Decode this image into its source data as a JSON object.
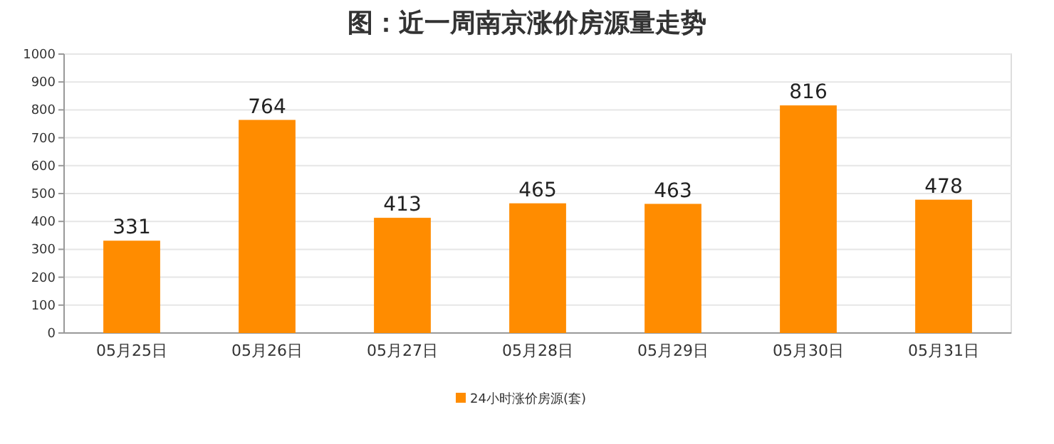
{
  "chart_data": {
    "type": "bar",
    "title": "图：近一周南京涨价房源量走势",
    "categories": [
      "05月25日",
      "05月26日",
      "05月27日",
      "05月28日",
      "05月29日",
      "05月30日",
      "05月31日"
    ],
    "series": [
      {
        "name": "24小时涨价房源(套)",
        "color": "#ff8c00",
        "values": [
          331,
          764,
          413,
          465,
          463,
          816,
          478
        ]
      }
    ],
    "ylim": [
      0,
      1000
    ],
    "yticks": [
      0,
      100,
      200,
      300,
      400,
      500,
      600,
      700,
      800,
      900,
      1000
    ],
    "grid": "y",
    "data_labels": true,
    "legend": "bottom"
  }
}
